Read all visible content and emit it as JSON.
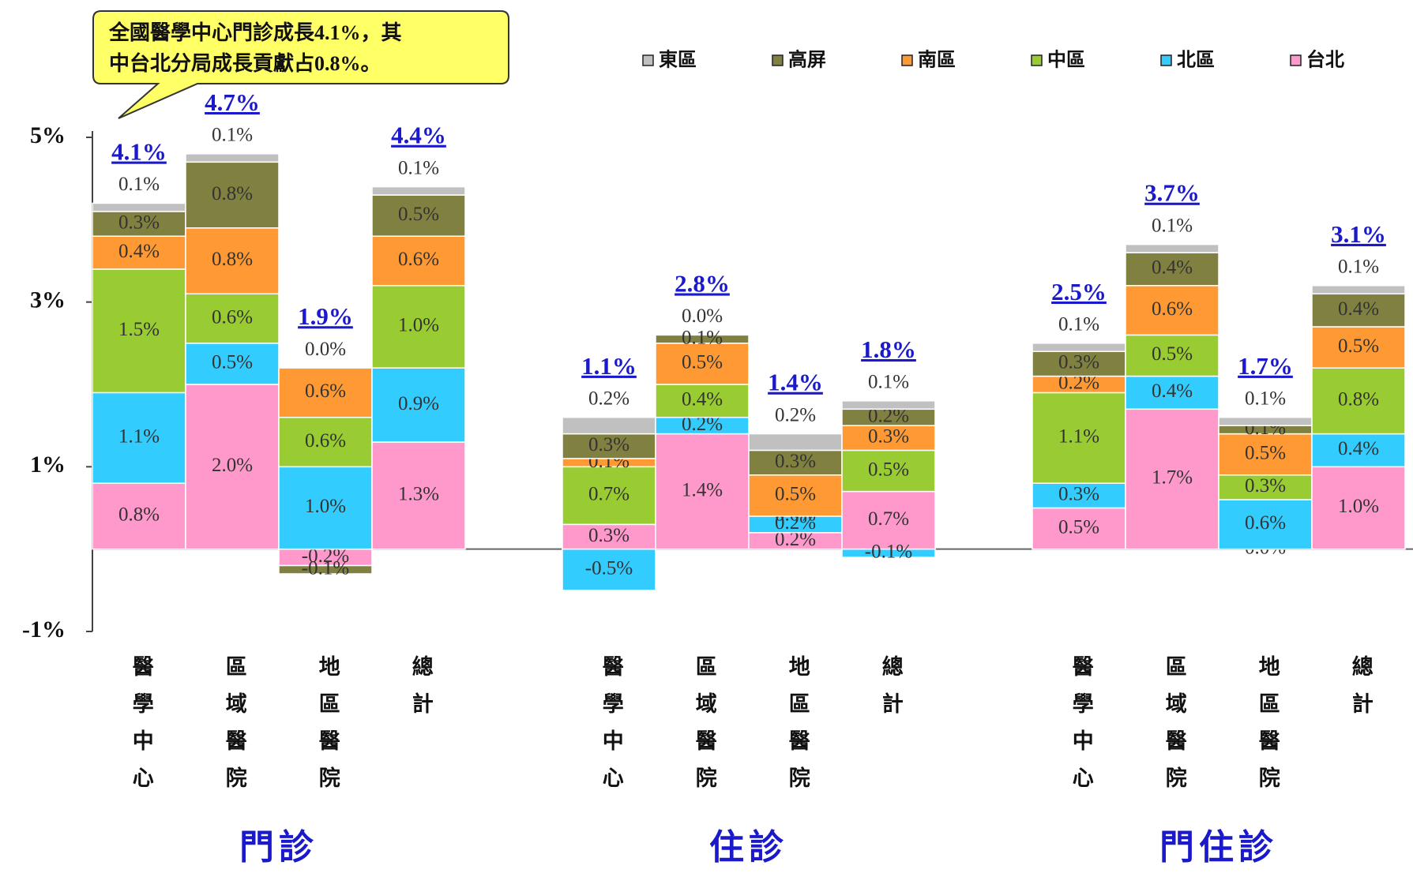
{
  "chart_data": {
    "type": "stacked_bar",
    "annotation": [
      "全國醫學中心門診成長4.1%，其",
      "中台北分局成長貢獻占0.8%。"
    ],
    "groups": [
      "門診",
      "住診",
      "門住診"
    ],
    "categories": [
      "醫學中心",
      "區域醫院",
      "地區醫院",
      "總計",
      "醫學中心",
      "區域醫院",
      "地區醫院",
      "總計",
      "醫學中心",
      "區域醫院",
      "地區醫院",
      "總計"
    ],
    "ylim": [
      -1,
      5
    ],
    "yticks": [
      {
        "value": -1,
        "label": "-1%"
      },
      {
        "value": 1,
        "label": "1%"
      },
      {
        "value": 3,
        "label": "3%"
      },
      {
        "value": 5,
        "label": "5%"
      }
    ],
    "totals": [
      4.1,
      4.7,
      1.9,
      4.4,
      1.1,
      2.8,
      1.4,
      1.8,
      2.5,
      3.7,
      1.7,
      3.1
    ],
    "total_labels": [
      "4.1%",
      "4.7%",
      "1.9%",
      "4.4%",
      "1.1%",
      "2.8%",
      "1.4%",
      "1.8%",
      "2.5%",
      "3.7%",
      "1.7%",
      "3.1%"
    ],
    "legend_order": [
      5,
      4,
      3,
      2,
      1,
      0
    ],
    "series": [
      {
        "name": "台北",
        "color": "#ff99cc",
        "values": [
          0.8,
          2.0,
          -0.2,
          1.3,
          0.3,
          1.4,
          0.2,
          0.7,
          0.5,
          1.7,
          0.0,
          1.0
        ],
        "value_labels": [
          "0.8%",
          "2.0%",
          "-0.2%",
          "1.3%",
          "0.3%",
          "1.4%",
          "0.2%",
          "0.7%",
          "0.5%",
          "1.7%",
          "0.0%",
          "1.0%"
        ]
      },
      {
        "name": "北區",
        "color": "#33ccff",
        "values": [
          1.1,
          0.5,
          1.0,
          0.9,
          -0.5,
          0.2,
          0.2,
          -0.1,
          0.3,
          0.4,
          0.6,
          0.4
        ],
        "value_labels": [
          "1.1%",
          "0.5%",
          "1.0%",
          "0.9%",
          "-0.5%",
          "0.2%",
          "0.2%",
          "-0.1%",
          "0.3%",
          "0.4%",
          "0.6%",
          "0.4%"
        ]
      },
      {
        "name": "中區",
        "color": "#99cc33",
        "values": [
          1.5,
          0.6,
          0.6,
          1.0,
          0.7,
          0.4,
          0.0,
          0.5,
          1.1,
          0.5,
          0.3,
          0.8
        ],
        "value_labels": [
          "1.5%",
          "0.6%",
          "0.6%",
          "1.0%",
          "0.7%",
          "0.4%",
          "0.0%",
          "0.5%",
          "1.1%",
          "0.5%",
          "0.3%",
          "0.8%"
        ]
      },
      {
        "name": "南區",
        "color": "#ff9933",
        "values": [
          0.4,
          0.8,
          0.6,
          0.6,
          0.1,
          0.5,
          0.5,
          0.3,
          0.2,
          0.6,
          0.5,
          0.5
        ],
        "value_labels": [
          "0.4%",
          "0.8%",
          "0.6%",
          "0.6%",
          "0.1%",
          "0.5%",
          "0.5%",
          "0.3%",
          "0.2%",
          "0.6%",
          "0.5%",
          "0.5%"
        ]
      },
      {
        "name": "高屏",
        "color": "#808040",
        "values": [
          0.3,
          0.8,
          -0.1,
          0.5,
          0.3,
          0.1,
          0.3,
          0.2,
          0.3,
          0.4,
          0.1,
          0.4
        ],
        "value_labels": [
          "0.3%",
          "0.8%",
          "-0.1%",
          "0.5%",
          "0.3%",
          "0.1%",
          "0.3%",
          "0.2%",
          "0.3%",
          "0.4%",
          "0.1%",
          "0.4%"
        ]
      },
      {
        "name": "東區",
        "color": "#c0c0c0",
        "values": [
          0.1,
          0.1,
          0.0,
          0.1,
          0.2,
          0.0,
          0.2,
          0.1,
          0.1,
          0.1,
          0.1,
          0.1
        ],
        "value_labels": [
          "0.1%",
          "0.1%",
          "0.0%",
          "0.1%",
          "0.2%",
          "0.0%",
          "0.2%",
          "0.1%",
          "0.1%",
          "0.1%",
          "0.1%",
          "0.1%"
        ]
      }
    ]
  }
}
